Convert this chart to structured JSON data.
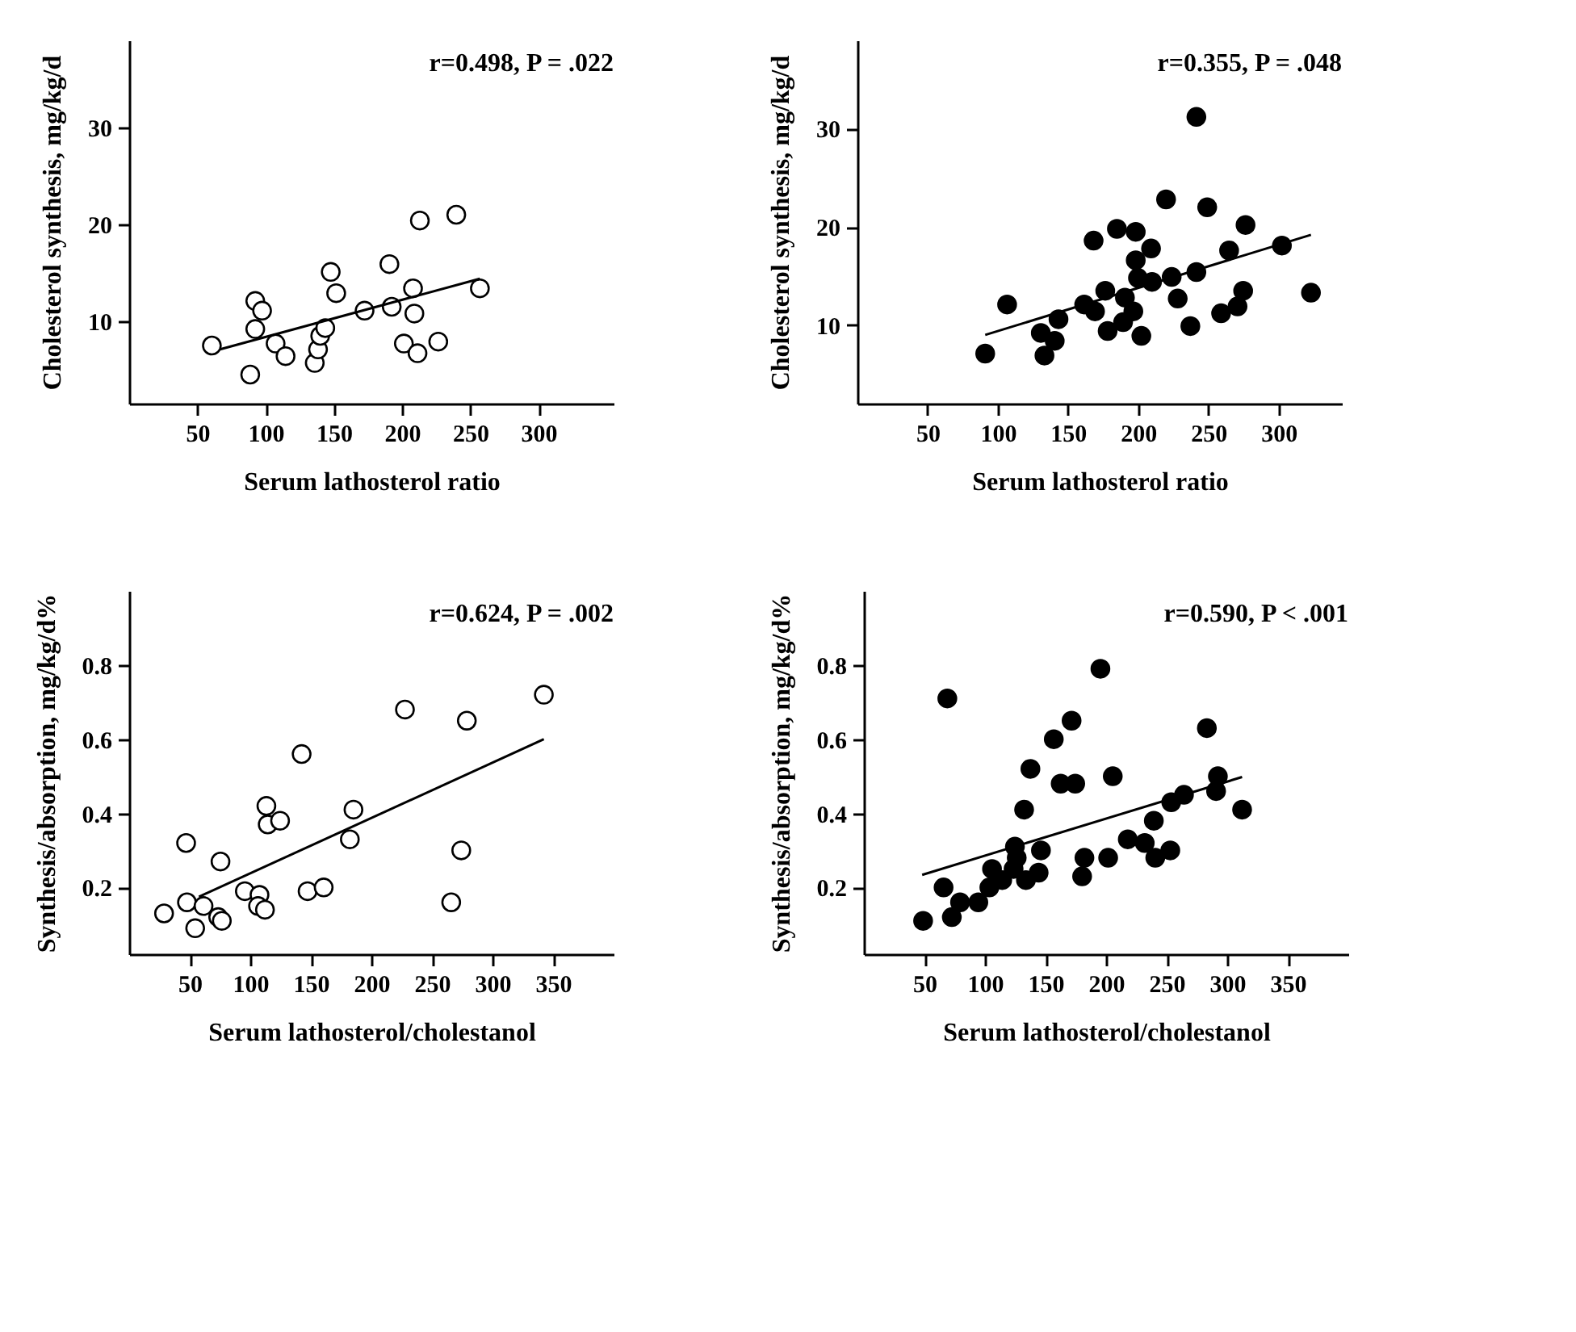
{
  "chart_data": [
    {
      "type": "scatter",
      "xlabel": "Serum lathosterol ratio",
      "ylabel": "Cholesterol synthesis, mg/kg/d",
      "annotations": [
        "r=0.498, P = .022"
      ],
      "xlim": [
        0,
        355
      ],
      "xticks": [
        50,
        100,
        150,
        200,
        250,
        300
      ],
      "ylim": [
        1.5,
        39
      ],
      "yticks": [
        10,
        20,
        30
      ],
      "series": [
        {
          "marker": "circle",
          "color": "#ffffff",
          "x": [
            60.6,
            88.7,
            92.4,
            97.4,
            92.4,
            107.3,
            114.6,
            136,
            138.4,
            140,
            143.7,
            147.7,
            151.7,
            172.5,
            190.7,
            192.4,
            201.3,
            208,
            209,
            211.3,
            213,
            226.5,
            239.7,
            257
          ],
          "values": [
            7.5,
            4.5,
            12.1,
            11.1,
            9.2,
            7.7,
            6.4,
            5.7,
            7.1,
            8.5,
            9.3,
            15.1,
            12.9,
            11.1,
            15.9,
            11.5,
            7.7,
            13.4,
            10.8,
            6.7,
            20.4,
            7.9,
            21.0,
            13.4
          ]
        },
        {
          "type": "line",
          "color": "#000000",
          "x": [
            66.6,
            257
          ],
          "values": [
            7.1,
            14.4
          ]
        }
      ]
    },
    {
      "type": "scatter",
      "xlabel": "Serum lathosterol ratio",
      "ylabel": "Cholesterol synthesis, mg/kg/d",
      "annotations": [
        "r=0.355, P = .048"
      ],
      "xlim": [
        0,
        345
      ],
      "xticks": [
        50,
        100,
        150,
        200,
        250,
        300
      ],
      "ylim": [
        2,
        39
      ],
      "yticks": [
        10,
        20,
        30
      ],
      "series": [
        {
          "marker": "circle",
          "color": "#000000",
          "x": [
            91,
            106.6,
            130.6,
            133.2,
            140.5,
            143.2,
            161.5,
            168.2,
            169.2,
            176.5,
            178.2,
            184.8,
            189.2,
            190.5,
            196.5,
            198.2,
            198.2,
            199.8,
            202.2,
            209.1,
            209.8,
            219.8,
            223.8,
            228.1,
            237.1,
            241.4,
            241.4,
            249.1,
            259,
            264.7,
            270.7,
            274.7,
            276.4,
            302.3,
            323
          ],
          "values": [
            7.1,
            12.1,
            9.2,
            6.9,
            8.4,
            10.6,
            12.1,
            18.6,
            11.4,
            13.5,
            9.4,
            19.8,
            10.3,
            12.8,
            11.4,
            19.5,
            16.6,
            14.8,
            8.9,
            17.8,
            14.4,
            22.8,
            14.9,
            12.7,
            9.9,
            31.2,
            15.4,
            22.0,
            11.2,
            17.6,
            11.9,
            13.5,
            20.2,
            18.1,
            13.3
          ]
        },
        {
          "type": "line",
          "color": "#000000",
          "x": [
            91,
            323
          ],
          "values": [
            9.0,
            19.2
          ]
        }
      ]
    },
    {
      "type": "scatter",
      "xlabel": "Serum lathosterol/cholestanol",
      "ylabel": "Synthesis/absorption, mg/kg/d%",
      "annotations": [
        "r=0.624, P = .002"
      ],
      "xlim": [
        0,
        400
      ],
      "xticks": [
        50,
        100,
        150,
        200,
        250,
        300,
        350
      ],
      "ylim": [
        0.02,
        1.0
      ],
      "yticks": [
        0.2,
        0.4,
        0.6,
        0.8
      ],
      "series": [
        {
          "marker": "circle",
          "color": "#ffffff",
          "x": [
            28.8,
            47.7,
            47,
            54.5,
            61.4,
            73.5,
            76.5,
            75.4,
            95.5,
            107.6,
            106.4,
            112.1,
            113.3,
            114.4,
            124.6,
            142.4,
            147.3,
            160.6,
            182.2,
            185.2,
            227.7,
            265.9,
            274.2,
            278.8,
            342.4
          ],
          "values": [
            0.13,
            0.16,
            0.32,
            0.09,
            0.15,
            0.12,
            0.11,
            0.27,
            0.19,
            0.18,
            0.15,
            0.14,
            0.42,
            0.37,
            0.38,
            0.56,
            0.19,
            0.2,
            0.33,
            0.41,
            0.68,
            0.16,
            0.3,
            0.65,
            0.72
          ]
        },
        {
          "type": "line",
          "color": "#000000",
          "x": [
            57.6,
            342.4
          ],
          "values": [
            0.175,
            0.6
          ]
        }
      ]
    },
    {
      "type": "scatter",
      "xlabel": "Serum lathosterol/cholestanol",
      "ylabel": "Synthesis/absorption, mg/kg/d%",
      "annotations": [
        "r=0.590, P < .001"
      ],
      "xlim": [
        0,
        400
      ],
      "xticks": [
        50,
        100,
        150,
        200,
        250,
        300,
        350
      ],
      "ylim": [
        0.02,
        1.0
      ],
      "yticks": [
        0.2,
        0.4,
        0.6,
        0.8
      ],
      "series": [
        {
          "marker": "circle",
          "color": "#000000",
          "x": [
            48.9,
            65.8,
            68.9,
            72.6,
            79.4,
            94.5,
            103.6,
            105.8,
            114.2,
            123.6,
            124.7,
            126.2,
            132.3,
            133.8,
            137.5,
            144.3,
            146.2,
            156.8,
            162.5,
            171.5,
            174.5,
            180.2,
            182.1,
            195.3,
            201.7,
            205.5,
            217.9,
            231.9,
            239.4,
            240.6,
            253,
            253.8,
            264.3,
            283.2,
            290.8,
            292.3,
            312.3
          ],
          "values": [
            0.11,
            0.2,
            0.71,
            0.12,
            0.16,
            0.16,
            0.2,
            0.25,
            0.22,
            0.25,
            0.31,
            0.28,
            0.41,
            0.22,
            0.52,
            0.24,
            0.3,
            0.6,
            0.48,
            0.65,
            0.48,
            0.23,
            0.28,
            0.79,
            0.28,
            0.5,
            0.33,
            0.32,
            0.38,
            0.28,
            0.3,
            0.43,
            0.45,
            0.63,
            0.46,
            0.5,
            0.41
          ]
        },
        {
          "type": "line",
          "color": "#000000",
          "x": [
            48.1,
            312.3
          ],
          "values": [
            0.234,
            0.498
          ]
        }
      ]
    }
  ]
}
